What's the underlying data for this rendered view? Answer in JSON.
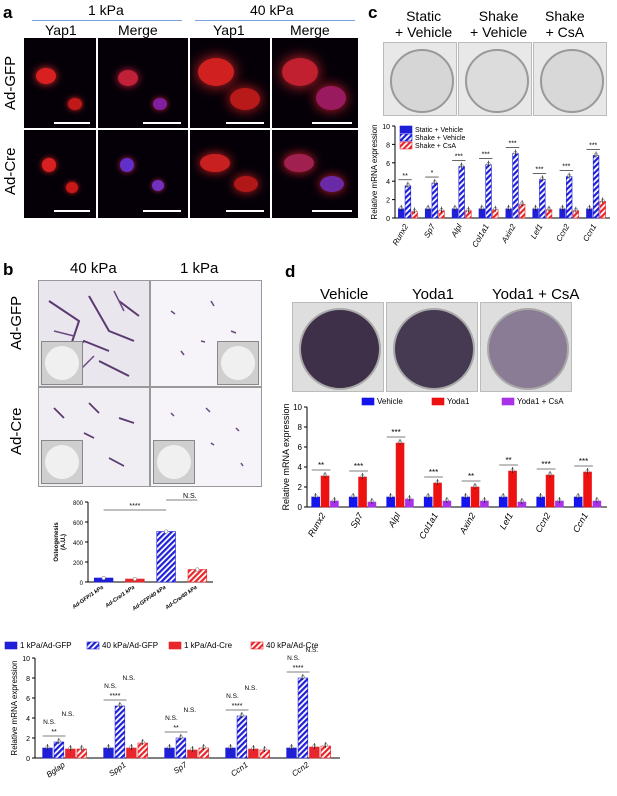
{
  "panels": {
    "a": {
      "label": "a",
      "groups": [
        "1 kPa",
        "40 kPa"
      ],
      "columns": [
        "Yap1",
        "Merge",
        "Yap1",
        "Merge"
      ],
      "rows": [
        "Ad-GFP",
        "Ad-Cre"
      ]
    },
    "b": {
      "label": "b",
      "groups": [
        "40 kPa",
        "1 kPa"
      ],
      "rows": [
        "Ad-GFP",
        "Ad-Cre"
      ]
    },
    "c": {
      "label": "c",
      "plates": [
        "Static\n+ Vehicle",
        "Shake\n+ Vehicle",
        "Shake\n+ CsA"
      ]
    },
    "d": {
      "label": "d",
      "plates": [
        "Vehicle",
        "Yoda1",
        "Yoda1 + CsA"
      ]
    }
  },
  "chart_data": [
    {
      "id": "c-qpcr",
      "type": "bar",
      "ylabel": "Relative mRNA expression",
      "ylim": [
        0,
        10
      ],
      "yticks": [
        0,
        2,
        4,
        6,
        8,
        10
      ],
      "categories": [
        "Runx2",
        "Sp7",
        "Alpl",
        "Col1a1",
        "Axin2",
        "Lef1",
        "Ccn2",
        "Ccn1"
      ],
      "series": [
        {
          "name": "Static + Vehicle",
          "color": "#1f1fd8",
          "pattern": "solid",
          "values": [
            1,
            1,
            1,
            1,
            1,
            1,
            1,
            1
          ]
        },
        {
          "name": "Shake + Vehicle",
          "color": "#1f1fd8",
          "pattern": "hatch",
          "values": [
            3.5,
            3.8,
            5.6,
            5.8,
            7.0,
            4.2,
            4.5,
            6.8
          ]
        },
        {
          "name": "Shake + CsA",
          "color": "#e8262b",
          "pattern": "hatch",
          "values": [
            0.7,
            0.8,
            0.8,
            0.9,
            1.5,
            0.9,
            0.8,
            1.8
          ]
        }
      ],
      "stars": [
        "**",
        "*",
        "***",
        "***",
        "***",
        "***",
        "***",
        "***"
      ],
      "legend": "top-left"
    },
    {
      "id": "b-osteogenesis",
      "type": "bar",
      "ylabel": "Osteogenesis\n(A.U.)",
      "ylim": [
        0,
        800
      ],
      "yticks": [
        0,
        200,
        400,
        600,
        800
      ],
      "categories": [
        "Ad-GFP/1 kPa",
        "Ad-Cre/1 kPa",
        "Ad-GFP/40 kPa",
        "Ad-Cre/40 kPa"
      ],
      "series": [
        {
          "name": "",
          "values": [
            40,
            30,
            505,
            125
          ],
          "colors": [
            "#1f1fd8",
            "#e8262b",
            "#1f1fd8",
            "#e8262b"
          ],
          "patterns": [
            "solid",
            "solid",
            "hatch",
            "hatch"
          ]
        }
      ],
      "annotations": [
        "****",
        "N.S."
      ]
    },
    {
      "id": "d-qpcr",
      "type": "bar",
      "ylabel": "Relative mRNA expression",
      "ylim": [
        0,
        10
      ],
      "yticks": [
        0,
        2,
        4,
        6,
        8,
        10
      ],
      "categories": [
        "Runx2",
        "Sp7",
        "Alpl",
        "Col1a1",
        "Axin2",
        "Lef1",
        "Ccn2",
        "Ccn1"
      ],
      "series": [
        {
          "name": "Vehicle",
          "color": "#1414ee",
          "values": [
            1,
            1,
            1,
            1,
            1,
            1,
            1,
            1
          ]
        },
        {
          "name": "Yoda1",
          "color": "#ee1111",
          "values": [
            3.1,
            3.0,
            6.4,
            2.4,
            2.0,
            3.6,
            3.2,
            3.5
          ]
        },
        {
          "name": "Yoda1 + CsA",
          "color": "#a832e8",
          "values": [
            0.6,
            0.5,
            0.8,
            0.6,
            0.6,
            0.5,
            0.6,
            0.6
          ]
        }
      ],
      "stars": [
        "**",
        "***",
        "***",
        "***",
        "**",
        "**",
        "***",
        "***"
      ],
      "legend": "top"
    },
    {
      "id": "b-qpcr",
      "type": "bar",
      "ylabel": "Relative mRNA expression",
      "ylim": [
        0,
        10
      ],
      "yticks": [
        0,
        2,
        4,
        6,
        8,
        10
      ],
      "categories": [
        "Bglap",
        "Spp1",
        "Sp7",
        "Ccn1",
        "Ccn2"
      ],
      "series": [
        {
          "name": "1 kPa/Ad-GFP",
          "color": "#1f1fd8",
          "pattern": "solid",
          "values": [
            1,
            1,
            1,
            1,
            1
          ]
        },
        {
          "name": "40 kPa/Ad-GFP",
          "color": "#1f1fd8",
          "pattern": "hatch",
          "values": [
            1.6,
            5.2,
            2.0,
            4.2,
            8.0
          ]
        },
        {
          "name": "1 kPa/Ad-Cre",
          "color": "#e8262b",
          "pattern": "solid",
          "values": [
            0.9,
            1.0,
            0.8,
            0.9,
            1.1
          ]
        },
        {
          "name": "40 kPa/Ad-Cre",
          "color": "#e8262b",
          "pattern": "hatch",
          "values": [
            0.9,
            1.5,
            1.0,
            0.8,
            1.2
          ]
        }
      ],
      "stars": [
        "**",
        "****",
        "**",
        "****",
        "****"
      ],
      "ns": "N.S.",
      "legend": "top"
    }
  ]
}
